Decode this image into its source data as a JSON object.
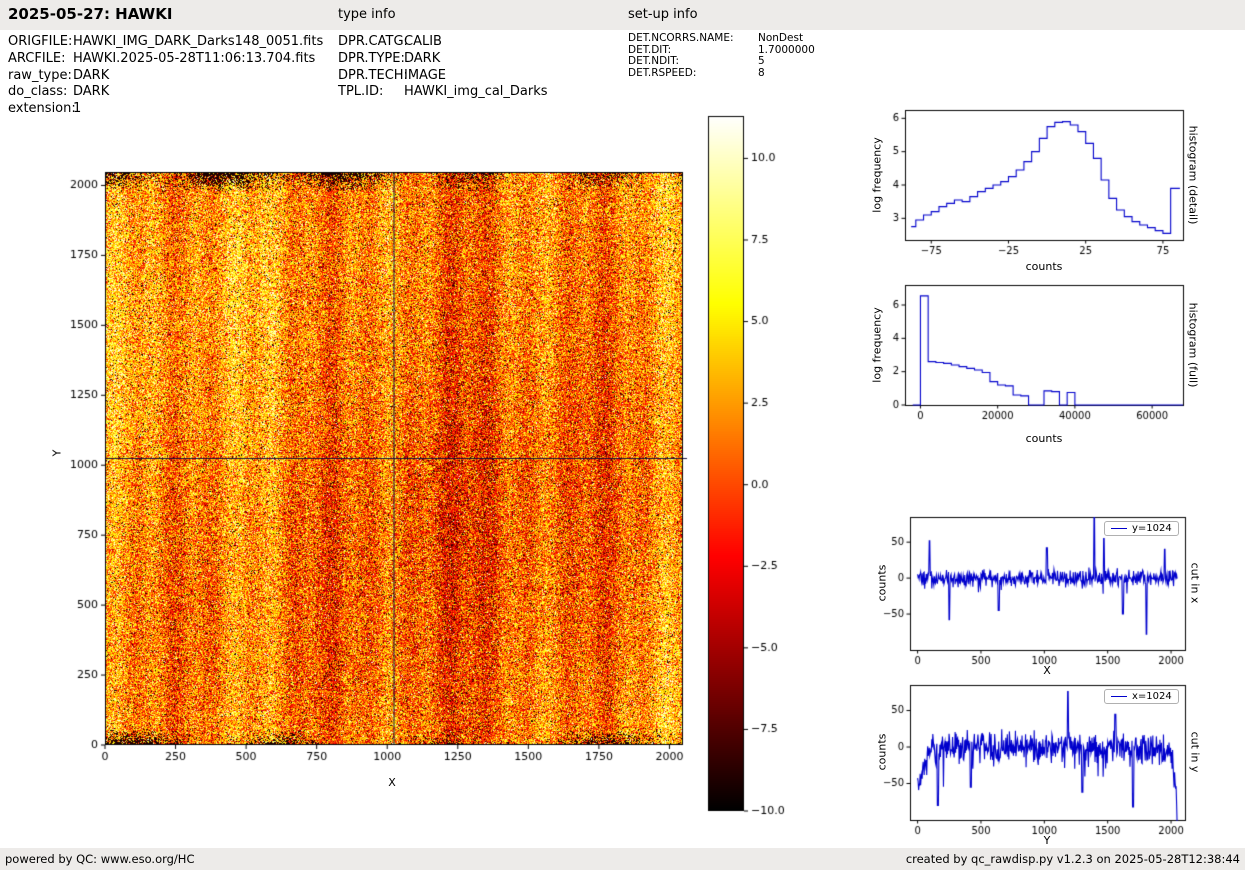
{
  "header": {
    "title": "2025-05-27: HAWKI",
    "type_info": "type info",
    "setup_info": "set-up info"
  },
  "file_info": [
    {
      "label": "ORIGFILE:",
      "value": "HAWKI_IMG_DARK_Darks148_0051.fits"
    },
    {
      "label": "ARCFILE:",
      "value": "HAWKI.2025-05-28T11:06:13.704.fits"
    },
    {
      "label": "raw_type:",
      "value": "DARK"
    },
    {
      "label": "do_class:",
      "value": "DARK"
    },
    {
      "label": "extension:",
      "value": "1"
    }
  ],
  "type_info": [
    {
      "label": "DPR.CATG:",
      "value": "CALIB"
    },
    {
      "label": "DPR.TYPE:",
      "value": "DARK"
    },
    {
      "label": "DPR.TECH:",
      "value": "IMAGE"
    },
    {
      "label": "TPL.ID:",
      "value": "HAWKI_img_cal_Darks"
    }
  ],
  "setup_info": [
    {
      "label": "DET.NCORRS.NAME:",
      "value": "NonDest"
    },
    {
      "label": "DET.DIT:",
      "value": "1.7000000"
    },
    {
      "label": "DET.NDIT:",
      "value": "5"
    },
    {
      "label": "DET.RSPEED:",
      "value": "8"
    }
  ],
  "footer": {
    "left": "powered by QC: www.eso.org/HC",
    "right": "created by qc_rawdisp.py v1.2.3 on 2025-05-28T12:38:44"
  },
  "chart_data": [
    {
      "type": "heatmap",
      "name": "raw-dark-frame-image",
      "xlabel": "X",
      "ylabel": "Y",
      "xlim": [
        0,
        2048
      ],
      "ylim": [
        0,
        2048
      ],
      "xticks": [
        0,
        250,
        500,
        750,
        1000,
        1250,
        1500,
        1750,
        2000
      ],
      "yticks": [
        0,
        250,
        500,
        750,
        1000,
        1250,
        1500,
        1750,
        2000
      ],
      "colormap": "hot",
      "colorbar_ticks": [
        10.0,
        7.5,
        5.0,
        2.5,
        0.0,
        -2.5,
        -5.0,
        -7.5,
        -10.0
      ],
      "colorbar_range": [
        -10.0,
        11.3
      ],
      "crosshair": {
        "x": 1024,
        "y": 1024
      },
      "description": "2048x2048 HAWKI raw dark frame; random noise around 0 counts displayed on a -10..+10 'hot' color scale; clusters of dark (low) pixels along the top and bottom edges; faint vertical column-noise striping; crosshair cut lines at x=1024 and y=1024"
    },
    {
      "type": "line",
      "style": "step",
      "name": "histogram-detail",
      "right_label": "histogram (detail)",
      "xlabel": "counts",
      "ylabel": "log frequency",
      "xlim": [
        -92,
        88
      ],
      "ylim": [
        2.35,
        6.25
      ],
      "xticks": [
        -75,
        -25,
        25,
        75
      ],
      "yticks": [
        3,
        4,
        5,
        6
      ],
      "color": "#0000cc",
      "x": [
        -88,
        -85,
        -80,
        -75,
        -70,
        -65,
        -60,
        -55,
        -50,
        -45,
        -40,
        -35,
        -30,
        -25,
        -20,
        -15,
        -10,
        -5,
        0,
        5,
        10,
        15,
        20,
        25,
        30,
        35,
        40,
        45,
        50,
        55,
        60,
        65,
        70,
        75,
        80,
        86
      ],
      "y": [
        2.75,
        2.95,
        3.1,
        3.2,
        3.35,
        3.45,
        3.55,
        3.5,
        3.65,
        3.8,
        3.9,
        4.0,
        4.1,
        4.25,
        4.45,
        4.7,
        5.0,
        5.4,
        5.75,
        5.88,
        5.9,
        5.8,
        5.6,
        5.25,
        4.8,
        4.15,
        3.6,
        3.25,
        3.05,
        2.9,
        2.8,
        2.72,
        2.63,
        2.55,
        3.9,
        3.9
      ]
    },
    {
      "type": "line",
      "style": "step",
      "name": "histogram-full",
      "right_label": "histogram (full)",
      "xlabel": "counts",
      "ylabel": "log frequency",
      "xlim": [
        -4000,
        68000
      ],
      "ylim": [
        0,
        7.2
      ],
      "xticks": [
        0,
        20000,
        40000,
        60000
      ],
      "yticks": [
        0,
        2,
        4,
        6
      ],
      "color": "#0000cc",
      "x": [
        -2000,
        0,
        2000,
        4000,
        6000,
        8000,
        10000,
        12000,
        14000,
        16000,
        18000,
        20000,
        22000,
        24000,
        26000,
        28000,
        30000,
        32000,
        34000,
        36000,
        38000,
        40000,
        42000,
        44000,
        46000,
        48000,
        50000,
        52000,
        54000,
        56000,
        58000,
        60000,
        62000,
        64000,
        66000,
        68000
      ],
      "y": [
        0,
        6.55,
        2.6,
        2.55,
        2.5,
        2.4,
        2.3,
        2.2,
        2.1,
        1.95,
        1.4,
        1.2,
        1.15,
        0.6,
        0.55,
        0,
        0,
        0.85,
        0.8,
        0,
        0.75,
        0,
        0,
        0,
        0,
        0,
        0,
        0,
        0,
        0,
        0,
        0,
        0,
        0,
        0,
        0
      ]
    },
    {
      "type": "line",
      "name": "cut-in-x",
      "right_label": "cut in x",
      "legend": "y=1024",
      "xlabel": "X",
      "ylabel": "counts",
      "xlim": [
        -60,
        2110
      ],
      "ylim": [
        -100,
        85
      ],
      "xticks": [
        0,
        500,
        1000,
        1500,
        2000
      ],
      "yticks": [
        -50,
        0,
        50
      ],
      "color": "#0000cc",
      "baseline": 0,
      "noise_sigma": 6,
      "neg_bias": 18,
      "spikes": [
        {
          "x": 95,
          "y": 52
        },
        {
          "x": 250,
          "y": -58
        },
        {
          "x": 640,
          "y": -45
        },
        {
          "x": 1020,
          "y": 42
        },
        {
          "x": 1395,
          "y": 87
        },
        {
          "x": 1470,
          "y": 55
        },
        {
          "x": 1620,
          "y": -50
        },
        {
          "x": 1805,
          "y": -78
        },
        {
          "x": 1950,
          "y": 40
        }
      ],
      "description": "row cut through the frame at y=1024; noise around 0 counts with isolated hot/cold pixel spikes"
    },
    {
      "type": "line",
      "name": "cut-in-y",
      "right_label": "cut in y",
      "legend": "x=1024",
      "xlabel": "Y",
      "ylabel": "counts",
      "xlim": [
        -60,
        2110
      ],
      "ylim": [
        -100,
        85
      ],
      "xticks": [
        0,
        500,
        1000,
        1500,
        2000
      ],
      "yticks": [
        -50,
        0,
        50
      ],
      "color": "#0000cc",
      "baseline": 0,
      "noise_sigma": 11,
      "neg_bias": 38,
      "edge_dip": {
        "left": 90,
        "right": 55,
        "depth": 85
      },
      "spikes": [
        {
          "x": 160,
          "y": -80
        },
        {
          "x": 420,
          "y": -55
        },
        {
          "x": 1185,
          "y": 76
        },
        {
          "x": 1300,
          "y": -62
        },
        {
          "x": 1560,
          "y": 45
        },
        {
          "x": 1700,
          "y": -82
        }
      ],
      "description": "column cut through the frame at x=1024; broader noise band around 0 counts with many downward spikes and deep dips at both detector edges"
    }
  ]
}
